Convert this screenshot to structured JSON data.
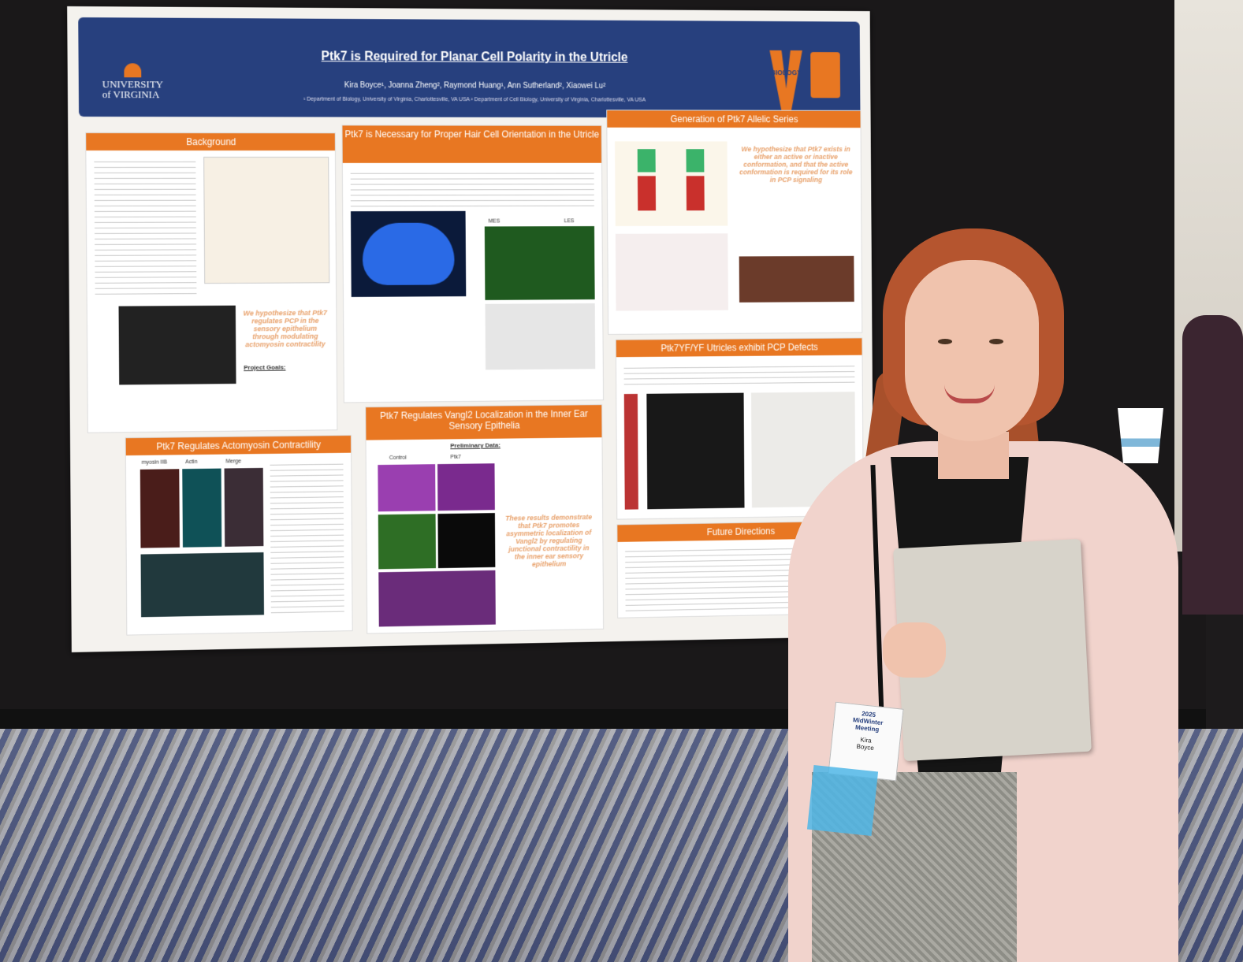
{
  "poster": {
    "title": "Ptk7 is Required for Planar Cell Polarity in the Utricle",
    "authors": "Kira Boyce¹, Joanna Zheng², Raymond Huang¹, Ann Sutherland², Xiaowei Lu²",
    "affiliations": "¹ Department of Biology, University of Virginia, Charlottesville, VA USA   ² Department of Cell Biology, University of Virginia, Charlottesville, VA USA",
    "logo_left": "UNIVERSITY of VIRGINIA",
    "logo_right": "BIOLOGY",
    "sections": {
      "background": "Background",
      "hair_cell": "Ptk7 is Necessary for Proper Hair Cell Orientation in the Utricle",
      "allelic": "Generation of Ptk7 Allelic Series",
      "actomyosin": "Ptk7 Regulates Actomyosin Contractility",
      "vangl2": "Ptk7 Regulates Vangl2 Localization in the Inner Ear Sensory Epithelia",
      "pcp_defects": "Ptk7YF/YF Utricles exhibit PCP Defects",
      "future": "Future Directions"
    },
    "callouts": {
      "background": "We hypothesize that Ptk7 regulates PCP in the sensory epithelium through modulating actomyosin contractility",
      "allelic": "We hypothesize that Ptk7 exists in either an active or inactive conformation, and that the active conformation is required for its role in PCP signaling",
      "vangl2": "These results demonstrate that Ptk7 promotes asymmetric localization of Vangl2 by regulating junctional contractility in the inner ear sensory epithelium"
    },
    "labels": {
      "project_goals": "Project Goals:",
      "preliminary": "Preliminary Data:",
      "myosin": "myosin IIB",
      "actin": "Actin",
      "merge": "Merge",
      "control": "Control",
      "ptk7": "Ptk7",
      "les": "LES",
      "mes": "MES"
    }
  },
  "badge": {
    "event_line1": "2025",
    "event_line2": "MidWinter",
    "event_line3": "Meeting",
    "first_name": "Kira",
    "last_name": "Boyce"
  }
}
